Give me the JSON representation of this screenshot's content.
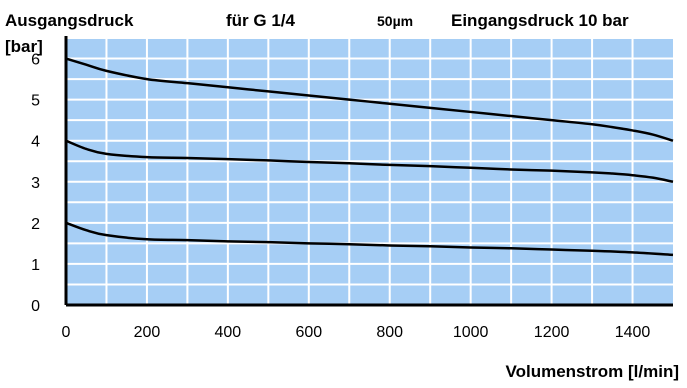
{
  "header": {
    "ylabel_line1": "Ausgangsdruck",
    "ylabel_line2": "[bar]",
    "subtitle": "für G 1/4",
    "filter": "50µm",
    "input_pressure": "Eingangsdruck 10 bar"
  },
  "chart_data": {
    "type": "line",
    "title": "für G 1/4",
    "ylabel": "Ausgangsdruck [bar]",
    "xlabel": "Volumenstrom [l/min]",
    "annotations": [
      "50µm",
      "Eingangsdruck 10 bar"
    ],
    "xlim": [
      0,
      1500
    ],
    "ylim": [
      0,
      6.5
    ],
    "x_ticks": [
      0,
      200,
      400,
      600,
      800,
      1000,
      1200,
      1400
    ],
    "y_ticks": [
      0,
      1,
      2,
      3,
      4,
      5,
      6
    ],
    "grid": true,
    "colors": {
      "plot_background": "#A6CEF5",
      "grid": "#FFFFFF",
      "line": "#000000"
    },
    "series": [
      {
        "x": [
          0,
          50,
          100,
          200,
          300,
          400,
          500,
          600,
          700,
          800,
          900,
          1000,
          1100,
          1200,
          1300,
          1350,
          1400,
          1450,
          1500
        ],
        "values": [
          6.0,
          5.85,
          5.7,
          5.5,
          5.4,
          5.3,
          5.2,
          5.1,
          5.0,
          4.9,
          4.8,
          4.7,
          4.6,
          4.5,
          4.4,
          4.33,
          4.25,
          4.15,
          4.0
        ]
      },
      {
        "x": [
          0,
          50,
          100,
          200,
          300,
          400,
          500,
          600,
          700,
          800,
          900,
          1000,
          1100,
          1200,
          1300,
          1350,
          1400,
          1450,
          1500
        ],
        "values": [
          4.0,
          3.8,
          3.68,
          3.6,
          3.58,
          3.55,
          3.52,
          3.48,
          3.45,
          3.41,
          3.38,
          3.34,
          3.3,
          3.27,
          3.23,
          3.2,
          3.16,
          3.1,
          3.0
        ]
      },
      {
        "x": [
          0,
          50,
          100,
          200,
          300,
          400,
          500,
          600,
          700,
          800,
          900,
          1000,
          1100,
          1200,
          1300,
          1400,
          1500
        ],
        "values": [
          2.0,
          1.82,
          1.7,
          1.6,
          1.58,
          1.55,
          1.53,
          1.5,
          1.48,
          1.45,
          1.43,
          1.4,
          1.38,
          1.35,
          1.32,
          1.28,
          1.22
        ]
      }
    ]
  }
}
